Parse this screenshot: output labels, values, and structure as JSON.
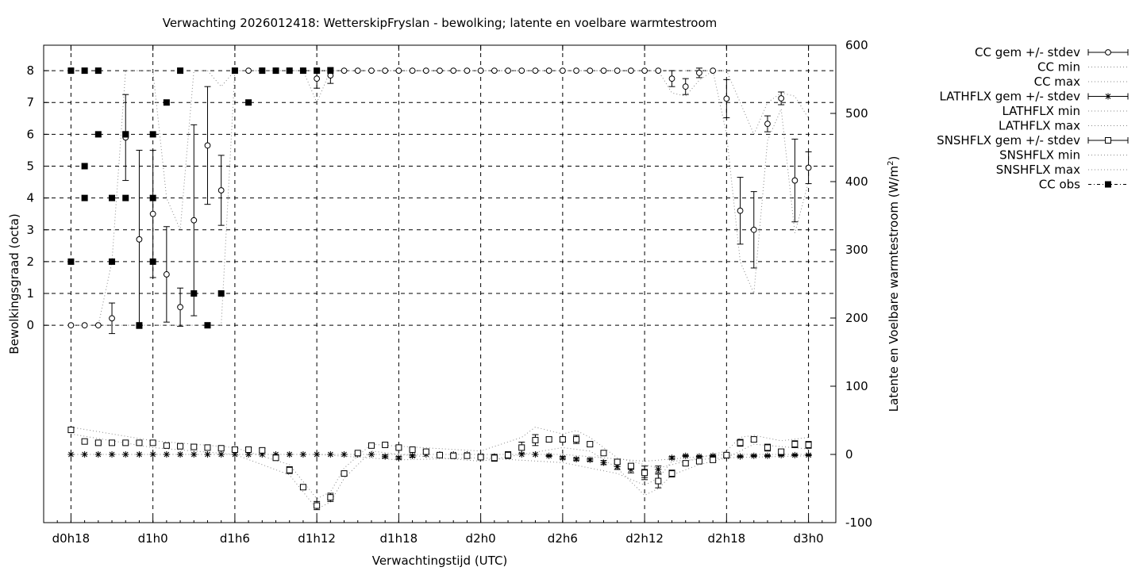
{
  "chart_data": {
    "type": "line",
    "title": "Verwachting 2026012418: WetterskipFryslan - bewolking; latente en voelbare warmtestroom",
    "xlabel": "Verwachtingstijd (UTC)",
    "ylabel": "Bewolkingsgraad (octa)",
    "y2label_main": "Latente en Voelbare warmtestroom (W/m",
    "y2label_sup": "2",
    "y2label_end": ")",
    "x_tick_labels": [
      "d0h18",
      "d1h0",
      "d1h6",
      "d1h12",
      "d1h18",
      "d2h0",
      "d2h6",
      "d2h12",
      "d2h18",
      "d3h0"
    ],
    "x_tick_hours": [
      0,
      6,
      12,
      18,
      24,
      30,
      36,
      42,
      48,
      54
    ],
    "xlim_hours": [
      -2,
      56
    ],
    "y_ticks": [
      0,
      1,
      2,
      3,
      4,
      5,
      6,
      7,
      8
    ],
    "ylim": [
      -6.2,
      8.8
    ],
    "y2_ticks": [
      600,
      500,
      400,
      300,
      200,
      100,
      0,
      -100
    ],
    "y2lim": [
      -100,
      600
    ],
    "grid": true,
    "legend_position": "outside-right",
    "legend": [
      "CC gem +/- stdev",
      "CC min",
      "CC max",
      "LATHFLX gem +/- stdev",
      "LATHFLX min",
      "LATHFLX max",
      "SNSHFLX gem +/- stdev",
      "SNSHFLX min",
      "SNSHFLX max",
      "CC obs"
    ],
    "series": [
      {
        "name": "CC gem +/- stdev",
        "axis": "y",
        "x": [
          0,
          1,
          2,
          3,
          4,
          5,
          6,
          7,
          8,
          9,
          10,
          11,
          12,
          13,
          14,
          15,
          16,
          17,
          18,
          19,
          20,
          21,
          22,
          23,
          24,
          25,
          26,
          27,
          28,
          29,
          30,
          31,
          32,
          33,
          34,
          35,
          36,
          37,
          38,
          39,
          40,
          41,
          42,
          43,
          44,
          45,
          46,
          47,
          48,
          49,
          50,
          51,
          52,
          53,
          54
        ],
        "values": [
          0,
          0,
          0,
          0.22,
          5.9,
          2.7,
          3.5,
          1.6,
          0.57,
          3.3,
          5.65,
          4.24,
          8,
          8,
          8,
          8,
          8,
          8,
          7.75,
          7.85,
          8,
          8,
          8,
          8,
          8,
          8,
          8,
          8,
          8,
          8,
          8,
          8,
          8,
          8,
          8,
          8,
          8,
          8,
          8,
          8,
          8,
          8,
          8,
          8,
          7.75,
          7.5,
          7.93,
          8,
          7.12,
          3.6,
          3.0,
          6.33,
          7.13,
          4.55,
          4.95
        ],
        "stdev": [
          0,
          0,
          0,
          0.48,
          1.35,
          2.8,
          2.0,
          1.5,
          0.6,
          3.0,
          1.85,
          1.1,
          0,
          0,
          0,
          0,
          0,
          0,
          0.3,
          0.25,
          0,
          0,
          0,
          0,
          0,
          0,
          0,
          0,
          0,
          0,
          0,
          0,
          0,
          0,
          0,
          0,
          0,
          0,
          0,
          0,
          0,
          0,
          0,
          0,
          0.25,
          0.25,
          0.15,
          0,
          0.6,
          1.05,
          1.2,
          0.25,
          0.2,
          1.3,
          0.5
        ]
      },
      {
        "name": "CC min",
        "axis": "y",
        "x": [
          0,
          1,
          2,
          3,
          4,
          5,
          6,
          7,
          8,
          9,
          10,
          11,
          12,
          13,
          14,
          15,
          16,
          17,
          18,
          19,
          20,
          21,
          22,
          23,
          24,
          25,
          26,
          27,
          28,
          29,
          30,
          31,
          32,
          33,
          34,
          35,
          36,
          37,
          38,
          39,
          40,
          41,
          42,
          43,
          44,
          45,
          46,
          47,
          48,
          49,
          50,
          51,
          52,
          53,
          54
        ],
        "values": [
          0,
          0,
          0,
          0,
          0,
          0,
          0,
          0,
          0,
          0,
          0,
          0,
          8,
          8,
          8,
          8,
          8,
          8,
          7,
          8,
          8,
          8,
          8,
          8,
          8,
          8,
          8,
          8,
          8,
          8,
          8,
          8,
          8,
          8,
          8,
          8,
          8,
          8,
          8,
          8,
          8,
          8,
          8,
          8,
          7.3,
          7.2,
          7.7,
          8,
          6.0,
          2.0,
          1.0,
          5.8,
          6.8,
          2.9,
          4.5
        ]
      },
      {
        "name": "CC max",
        "axis": "y",
        "x": [
          0,
          1,
          2,
          3,
          4,
          5,
          6,
          7,
          8,
          9,
          10,
          11,
          12,
          13,
          14,
          15,
          16,
          17,
          18,
          19,
          20,
          21,
          22,
          23,
          24,
          25,
          26,
          27,
          28,
          29,
          30,
          31,
          32,
          33,
          34,
          35,
          36,
          37,
          38,
          39,
          40,
          41,
          42,
          43,
          44,
          45,
          46,
          47,
          48,
          49,
          50,
          51,
          52,
          53,
          54
        ],
        "values": [
          0,
          0,
          0,
          2,
          8,
          8,
          8,
          4,
          3,
          8,
          8,
          7.5,
          8,
          8,
          8,
          8,
          8,
          8,
          8,
          8,
          8,
          8,
          8,
          8,
          8,
          8,
          8,
          8,
          8,
          8,
          8,
          8,
          8,
          8,
          8,
          8,
          8,
          8,
          8,
          8,
          8,
          8,
          8,
          8,
          8,
          8,
          8,
          8,
          8,
          7,
          6,
          7,
          7.3,
          7.2,
          6.5
        ]
      },
      {
        "name": "CC obs",
        "axis": "y",
        "x": [
          0,
          0,
          1,
          1,
          1,
          2,
          2,
          3,
          3,
          4,
          4,
          4,
          5,
          6,
          6,
          6,
          7,
          8,
          9,
          10,
          11,
          12,
          13,
          14,
          15,
          16,
          17,
          18,
          19
        ],
        "values": [
          8,
          2,
          8,
          5,
          4,
          8,
          6,
          4,
          2,
          6,
          4,
          6,
          0,
          4,
          2,
          6,
          7,
          8,
          1,
          0,
          1,
          8,
          7,
          8,
          8,
          8,
          8,
          8,
          8
        ]
      },
      {
        "name": "LATHFLX gem +/- stdev",
        "axis": "y2",
        "x": [
          0,
          1,
          2,
          3,
          4,
          5,
          6,
          7,
          8,
          9,
          10,
          11,
          12,
          13,
          14,
          15,
          16,
          17,
          18,
          19,
          20,
          21,
          22,
          23,
          24,
          25,
          26,
          27,
          28,
          29,
          30,
          31,
          32,
          33,
          34,
          35,
          36,
          37,
          38,
          39,
          40,
          41,
          42,
          43,
          44,
          45,
          46,
          47,
          48,
          49,
          50,
          51,
          52,
          53,
          54
        ],
        "values": [
          0,
          0,
          0,
          0,
          0,
          0,
          0,
          0,
          0,
          0,
          0,
          0,
          0,
          0,
          0,
          0,
          0,
          0,
          0,
          0,
          0,
          0,
          0,
          -3,
          -5,
          -2,
          0,
          0,
          0,
          0,
          -2,
          -3,
          -1,
          0,
          0,
          -2,
          -5,
          -7,
          -8,
          -12,
          -18,
          -22,
          -28,
          -22,
          -5,
          -2,
          -3,
          -2,
          -3,
          -3,
          -2,
          -2,
          -1,
          -1,
          -1
        ],
        "stdev": [
          0,
          0,
          0,
          0,
          0,
          0,
          0,
          0,
          0,
          0,
          0,
          0,
          0,
          0,
          0,
          0,
          0,
          0,
          0,
          0,
          0,
          0,
          0,
          2,
          2,
          2,
          0,
          0,
          0,
          0,
          1,
          1,
          1,
          0,
          0,
          1,
          2,
          2,
          2,
          3,
          4,
          5,
          6,
          5,
          2,
          1,
          1,
          1,
          1,
          1,
          1,
          1,
          1,
          1,
          1
        ]
      },
      {
        "name": "LATHFLX min",
        "axis": "y2",
        "x": [
          0,
          6,
          12,
          18,
          24,
          30,
          36,
          40,
          42,
          43,
          44,
          48,
          54
        ],
        "values": [
          0,
          0,
          0,
          0,
          -8,
          -5,
          -12,
          -28,
          -45,
          -35,
          -10,
          -5,
          -2
        ]
      },
      {
        "name": "LATHFLX max",
        "axis": "y2",
        "x": [
          0,
          6,
          12,
          18,
          24,
          30,
          36,
          42,
          48,
          54
        ],
        "values": [
          0,
          0,
          0,
          0,
          0,
          0,
          0,
          -10,
          0,
          0
        ]
      },
      {
        "name": "SNSHFLX gem +/- stdev",
        "axis": "y2",
        "x": [
          0,
          1,
          2,
          3,
          4,
          5,
          6,
          7,
          8,
          9,
          10,
          11,
          12,
          13,
          14,
          15,
          16,
          17,
          18,
          19,
          20,
          21,
          22,
          23,
          24,
          25,
          26,
          27,
          28,
          29,
          30,
          31,
          32,
          33,
          34,
          35,
          36,
          37,
          38,
          39,
          40,
          41,
          42,
          43,
          44,
          45,
          46,
          47,
          48,
          49,
          50,
          51,
          52,
          53,
          54
        ],
        "values": [
          36,
          19,
          17,
          17,
          17,
          17,
          17,
          13,
          12,
          11,
          10,
          9,
          7,
          7,
          6,
          -5,
          -23,
          -48,
          -75,
          -63,
          -28,
          2,
          13,
          14,
          10,
          7,
          4,
          -1,
          -2,
          -2,
          -4,
          -5,
          -1,
          10,
          21,
          22,
          22,
          22,
          15,
          2,
          -11,
          -17,
          -27,
          -39,
          -28,
          -13,
          -10,
          -8,
          -1,
          17,
          22,
          10,
          4,
          15,
          14
        ],
        "stdev": [
          3,
          2,
          2,
          2,
          2,
          2,
          2,
          2,
          2,
          2,
          2,
          2,
          3,
          3,
          3,
          3,
          5,
          3,
          6,
          6,
          3,
          2,
          2,
          2,
          2,
          2,
          2,
          2,
          2,
          2,
          3,
          5,
          5,
          8,
          8,
          3,
          3,
          6,
          3,
          2,
          2,
          3,
          10,
          10,
          5,
          3,
          3,
          3,
          3,
          5,
          3,
          5,
          3,
          5,
          5
        ]
      },
      {
        "name": "SNSHFLX min",
        "axis": "y2",
        "x": [
          0,
          6,
          12,
          16,
          17,
          18,
          19,
          20,
          22,
          24,
          30,
          33,
          36,
          38,
          40,
          42,
          43,
          44,
          46,
          48,
          50,
          54
        ],
        "values": [
          30,
          10,
          0,
          -30,
          -55,
          -80,
          -70,
          -35,
          5,
          0,
          -10,
          0,
          10,
          5,
          -20,
          -60,
          -50,
          -30,
          -15,
          -5,
          15,
          8
        ]
      },
      {
        "name": "SNSHFLX max",
        "axis": "y2",
        "x": [
          0,
          6,
          12,
          16,
          17,
          18,
          19,
          20,
          22,
          24,
          30,
          33,
          34,
          36,
          37,
          38,
          40,
          42,
          43,
          44,
          46,
          48,
          49,
          50,
          52,
          54
        ],
        "values": [
          40,
          20,
          10,
          -15,
          -40,
          -65,
          -55,
          -20,
          15,
          12,
          5,
          25,
          40,
          30,
          35,
          25,
          -5,
          -15,
          -20,
          -15,
          -5,
          5,
          25,
          28,
          20,
          25
        ]
      }
    ]
  }
}
